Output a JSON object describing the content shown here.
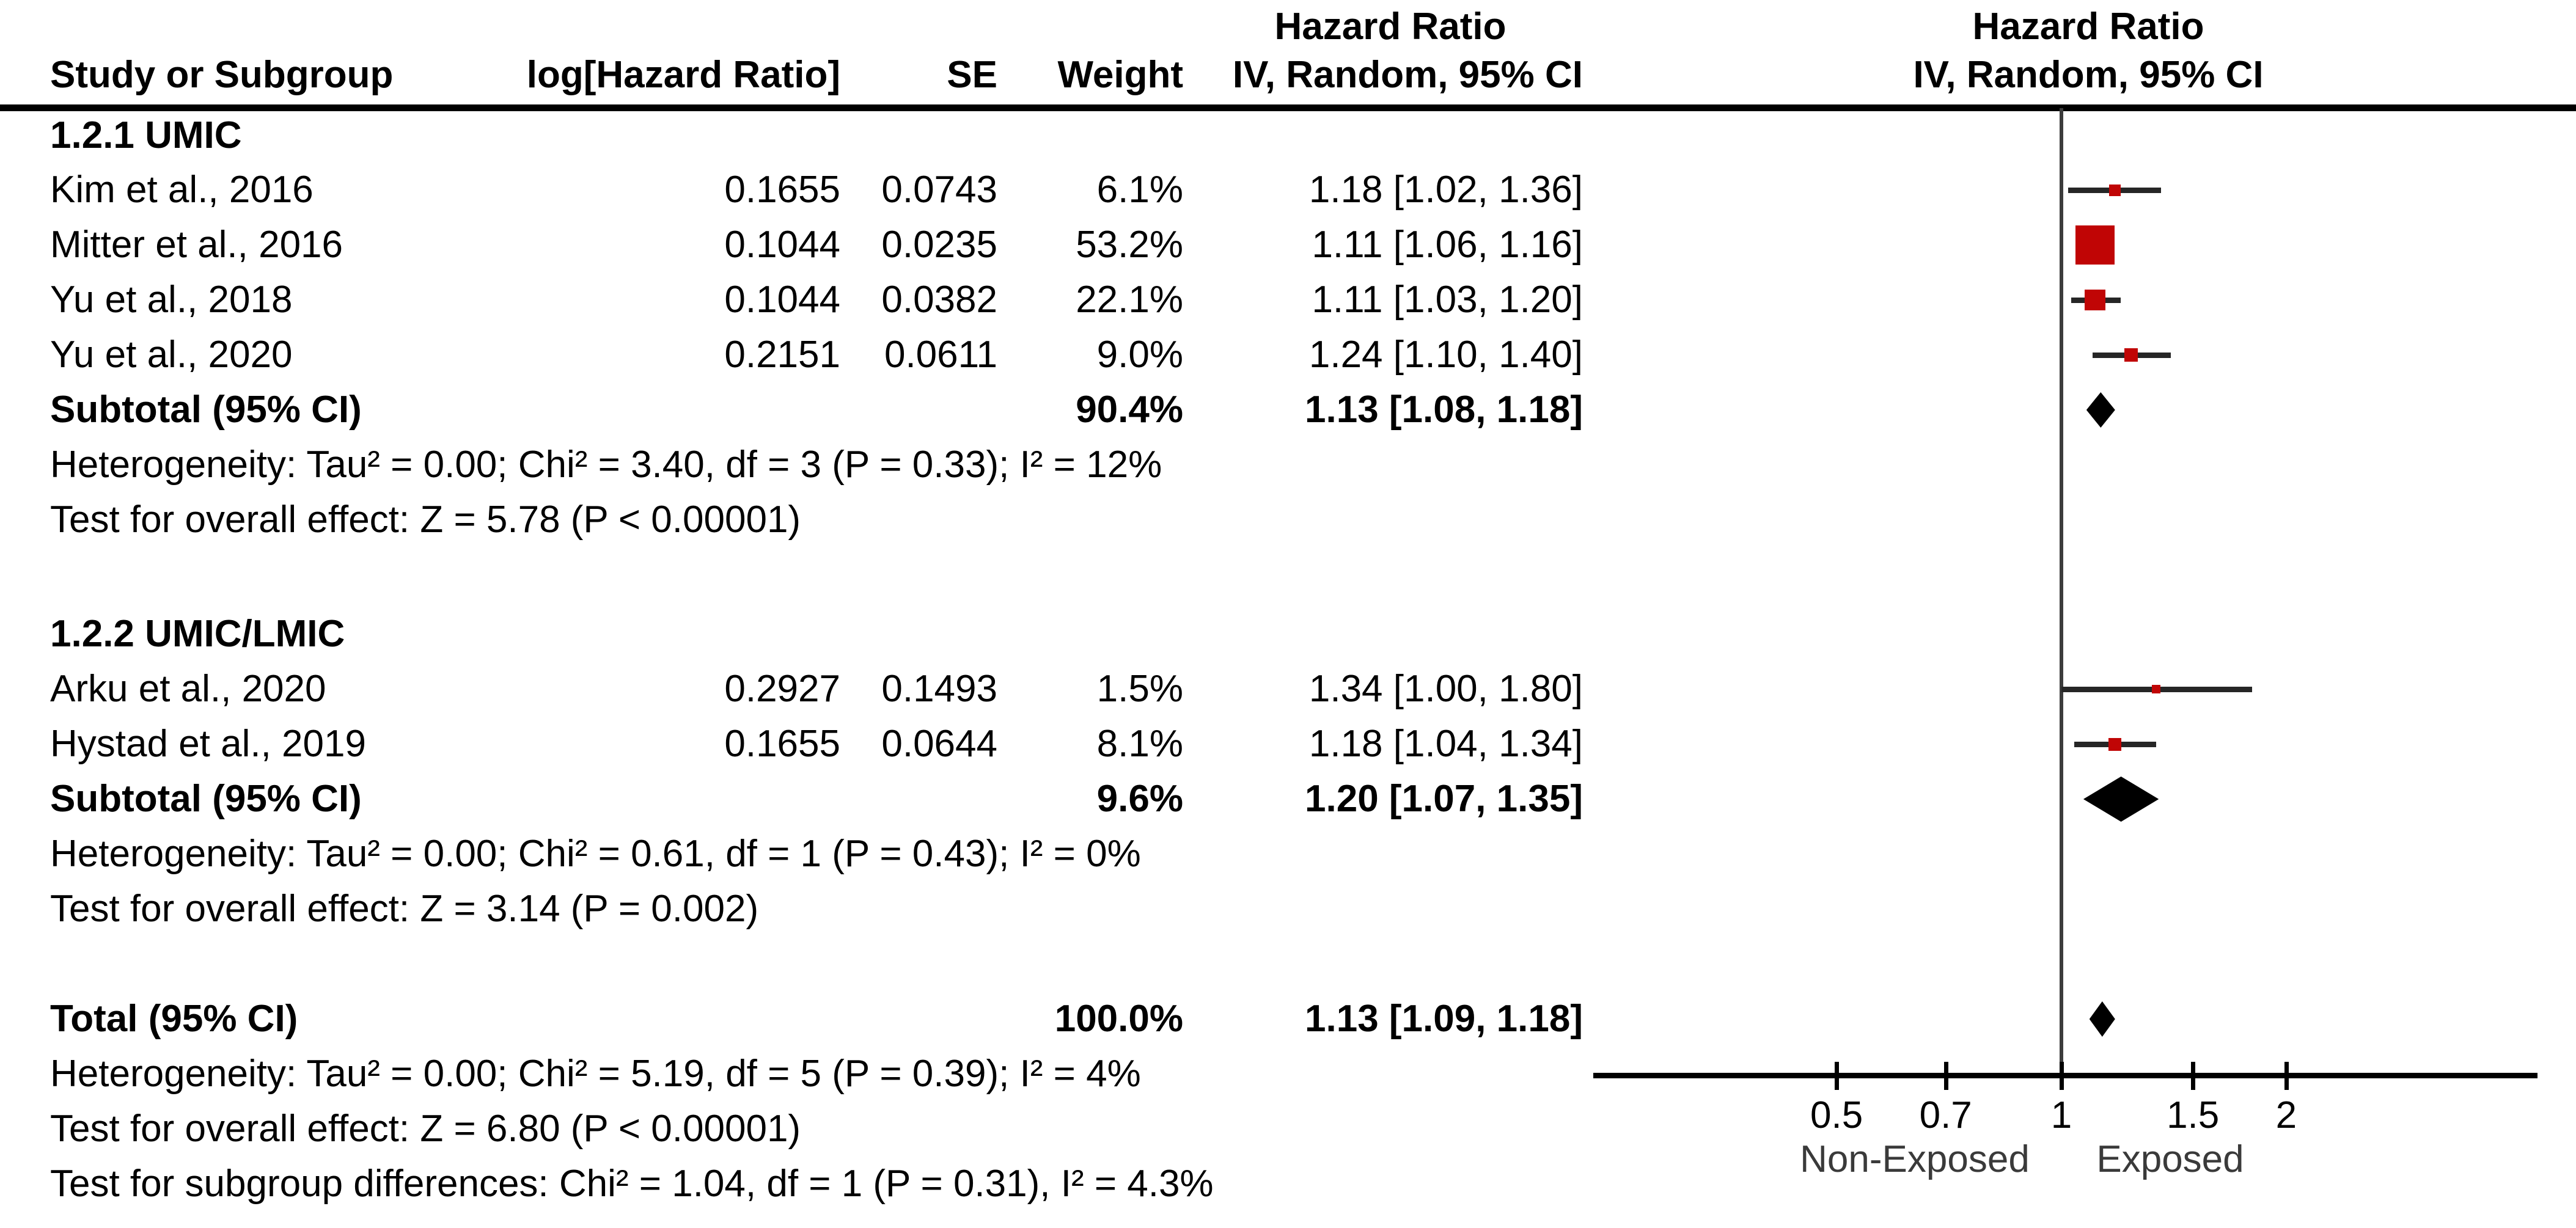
{
  "header": {
    "col_hr_left": "Hazard Ratio",
    "col_hr_right": "Hazard Ratio",
    "study": "Study or Subgroup",
    "loghr": "log[Hazard Ratio]",
    "se": "SE",
    "weight": "Weight",
    "ci": "IV, Random, 95% CI",
    "ci_plot": "IV, Random, 95% CI"
  },
  "colors": {
    "marker_red": "#C00505",
    "diamond_black": "#000000",
    "ci_line": "#262626",
    "axis_black": "#000000",
    "grid_line": "#3C3C3C"
  },
  "chart_data": {
    "type": "forest-plot",
    "effect_measure": "Hazard Ratio",
    "model": "IV, Random, 95% CI",
    "x_scale": "log",
    "x_ticks": [
      "0.5",
      "0.7",
      "1",
      "1.5",
      "2"
    ],
    "x_tick_values": [
      0.5,
      0.7,
      1,
      1.5,
      2
    ],
    "axis_left_label": "Non-Exposed",
    "axis_right_label": "Exposed",
    "groups": [
      {
        "label": "1.2.1 UMIC",
        "studies": [
          {
            "study": "Kim et al., 2016",
            "log_hr": "0.1655",
            "se": "0.0743",
            "weight": "6.1%",
            "ci_text": "1.18 [1.02, 1.36]",
            "hr": 1.18,
            "ci_low": 1.02,
            "ci_high": 1.36,
            "weight_pct": 6.1
          },
          {
            "study": "Mitter et al., 2016",
            "log_hr": "0.1044",
            "se": "0.0235",
            "weight": "53.2%",
            "ci_text": "1.11 [1.06, 1.16]",
            "hr": 1.11,
            "ci_low": 1.06,
            "ci_high": 1.16,
            "weight_pct": 53.2
          },
          {
            "study": "Yu et al., 2018",
            "log_hr": "0.1044",
            "se": "0.0382",
            "weight": "22.1%",
            "ci_text": "1.11 [1.03, 1.20]",
            "hr": 1.11,
            "ci_low": 1.03,
            "ci_high": 1.2,
            "weight_pct": 22.1
          },
          {
            "study": "Yu et al., 2020",
            "log_hr": "0.2151",
            "se": "0.0611",
            "weight": "9.0%",
            "ci_text": "1.24 [1.10, 1.40]",
            "hr": 1.24,
            "ci_low": 1.1,
            "ci_high": 1.4,
            "weight_pct": 9.0
          }
        ],
        "subtotal": {
          "label": "Subtotal (95% CI)",
          "weight": "90.4%",
          "ci_text": "1.13 [1.08, 1.18]",
          "hr": 1.13,
          "ci_low": 1.08,
          "ci_high": 1.18
        },
        "heterogeneity": "Heterogeneity: Tau² = 0.00; Chi² = 3.40, df = 3 (P = 0.33); I² = 12%",
        "overall_effect": "Test for overall effect: Z = 5.78 (P < 0.00001)"
      },
      {
        "label": "1.2.2 UMIC/LMIC",
        "studies": [
          {
            "study": "Arku et al., 2020",
            "log_hr": "0.2927",
            "se": "0.1493",
            "weight": "1.5%",
            "ci_text": "1.34 [1.00, 1.80]",
            "hr": 1.34,
            "ci_low": 1.0,
            "ci_high": 1.8,
            "weight_pct": 1.5
          },
          {
            "study": "Hystad et al., 2019",
            "log_hr": "0.1655",
            "se": "0.0644",
            "weight": "8.1%",
            "ci_text": "1.18 [1.04, 1.34]",
            "hr": 1.18,
            "ci_low": 1.04,
            "ci_high": 1.34,
            "weight_pct": 8.1
          }
        ],
        "subtotal": {
          "label": "Subtotal (95% CI)",
          "weight": "9.6%",
          "ci_text": "1.20 [1.07, 1.35]",
          "hr": 1.2,
          "ci_low": 1.07,
          "ci_high": 1.35
        },
        "heterogeneity": "Heterogeneity: Tau² = 0.00; Chi² = 0.61, df = 1 (P = 0.43); I² = 0%",
        "overall_effect": "Test for overall effect: Z = 3.14 (P = 0.002)"
      }
    ],
    "total": {
      "label": "Total (95% CI)",
      "weight": "100.0%",
      "ci_text": "1.13 [1.09, 1.18]",
      "hr": 1.13,
      "ci_low": 1.09,
      "ci_high": 1.18
    },
    "total_heterogeneity": "Heterogeneity: Tau² = 0.00; Chi² = 5.19, df = 5 (P = 0.39); I² = 4%",
    "total_overall_effect": "Test for overall effect: Z = 6.80 (P < 0.00001)",
    "subgroup_differences": "Test for subgroup differences: Chi² = 1.04, df = 1 (P = 0.31), I² = 4.3%"
  }
}
